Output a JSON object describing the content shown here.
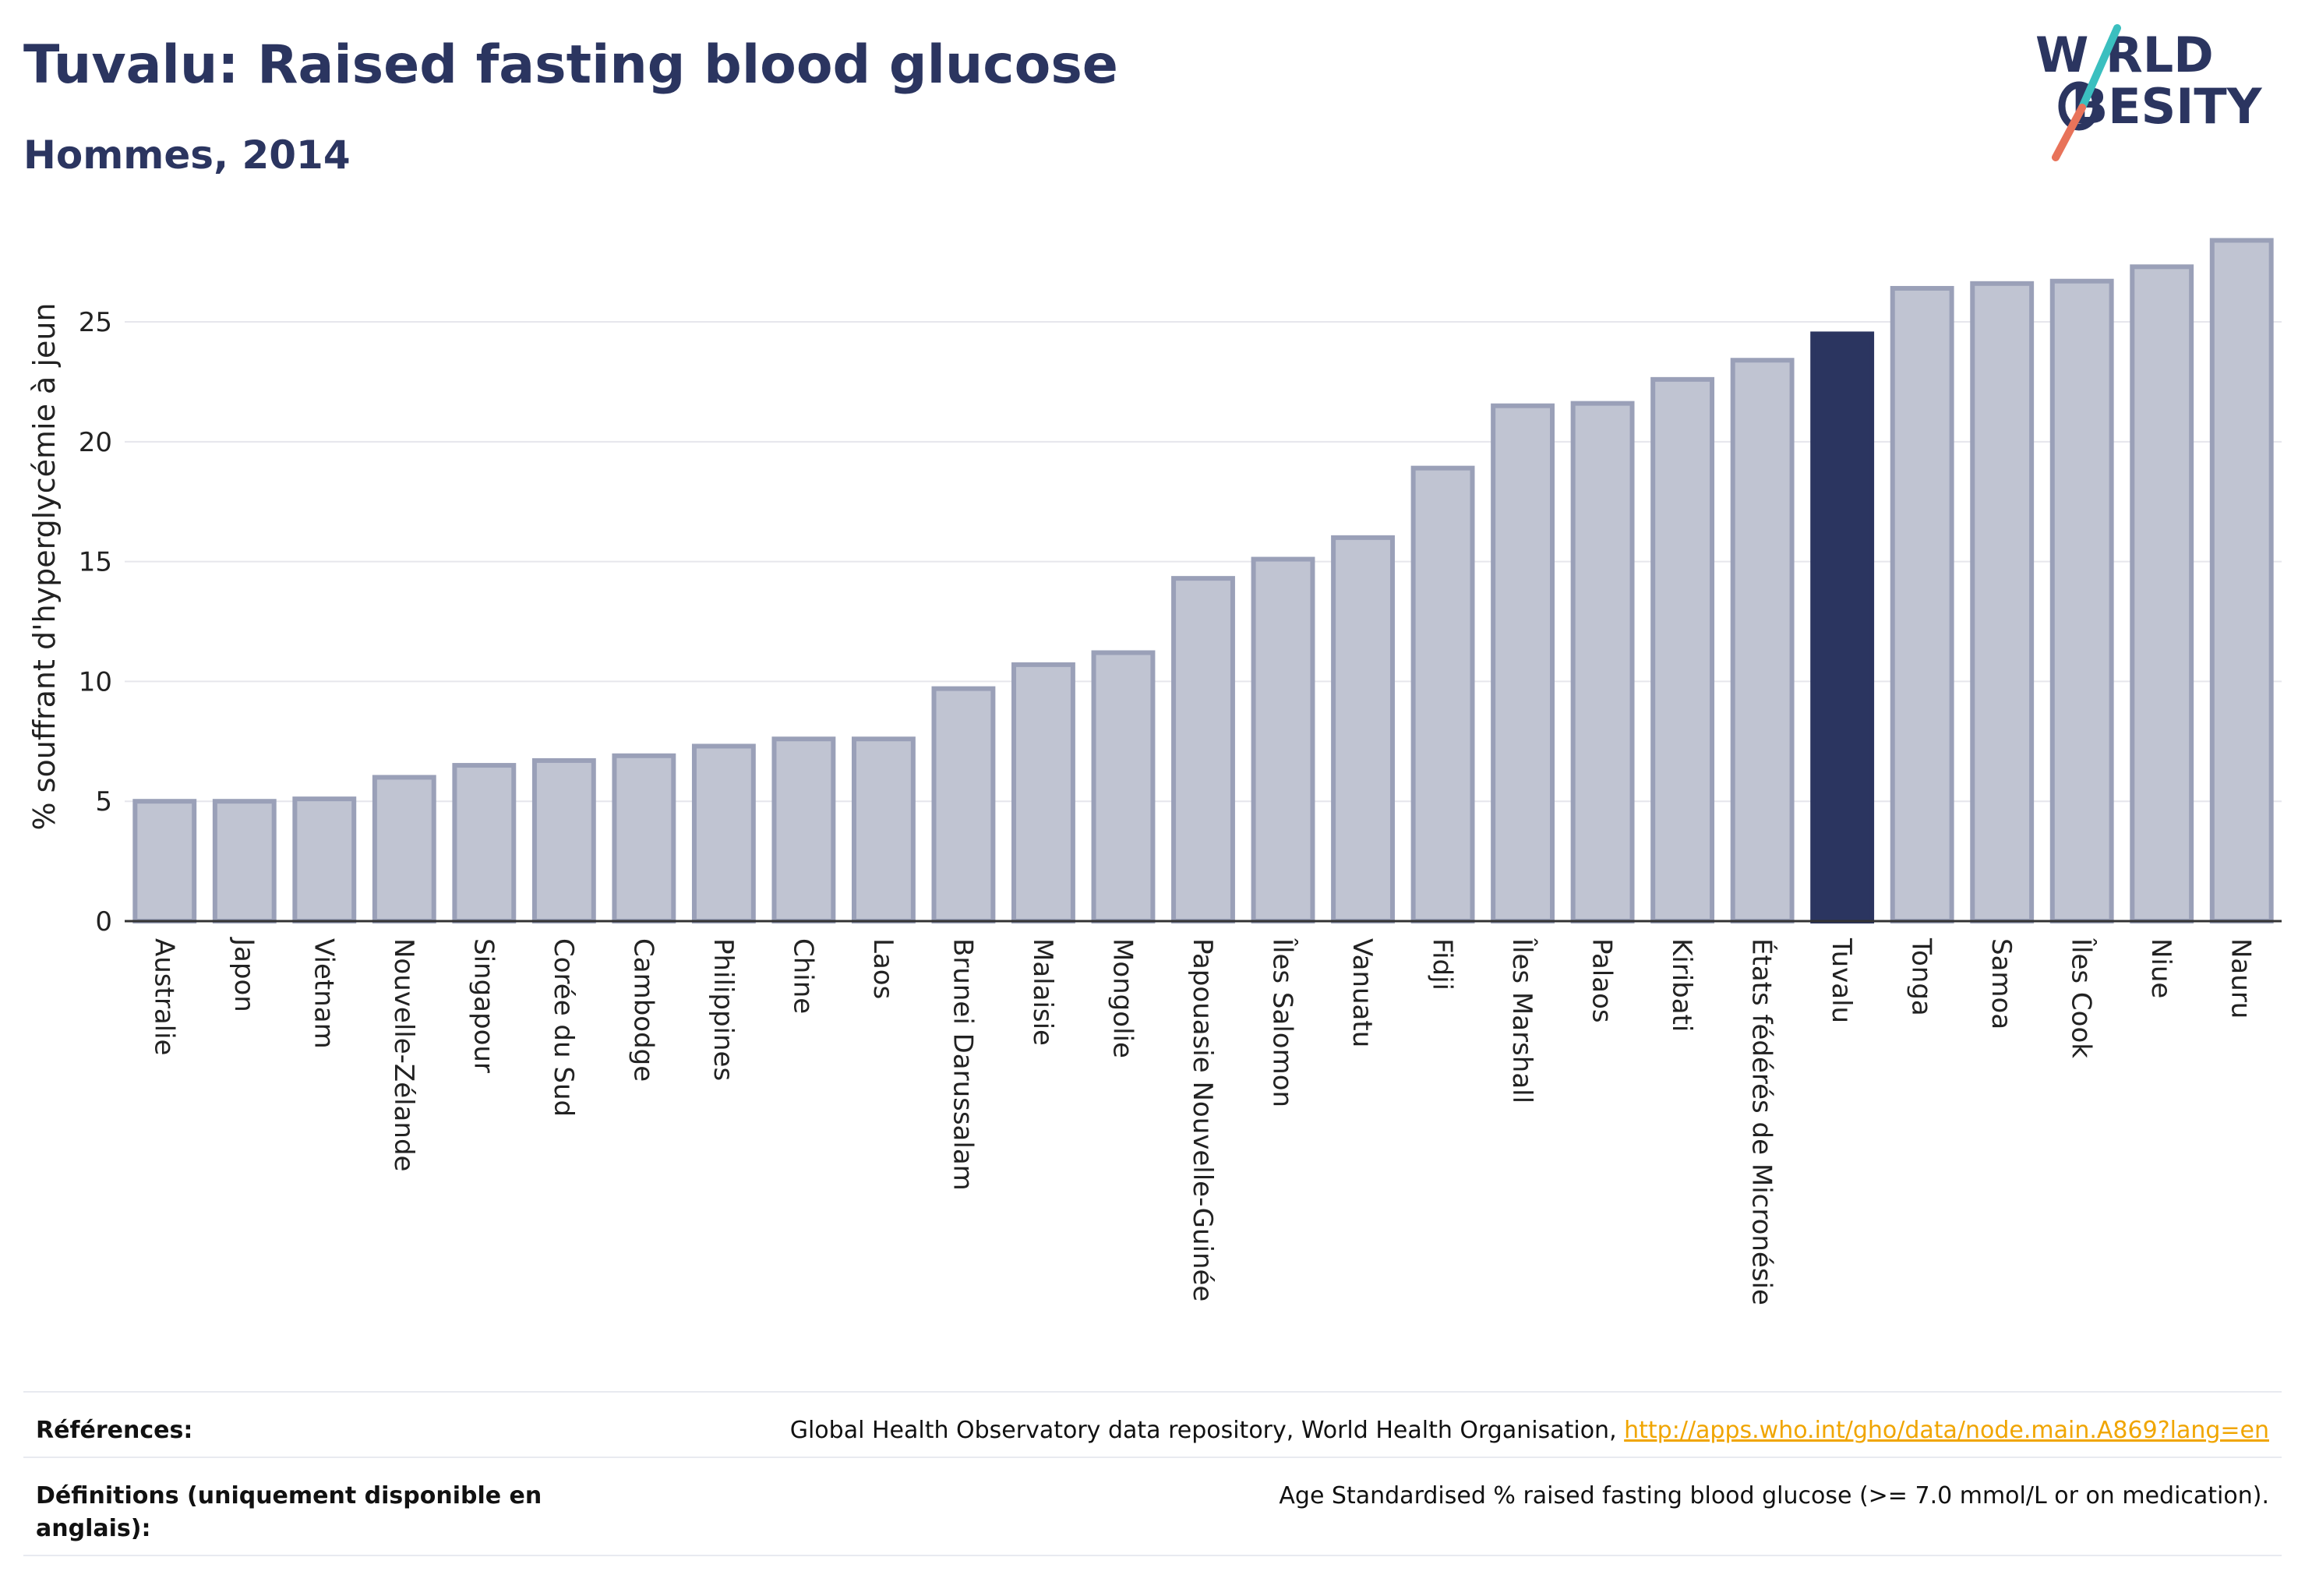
{
  "header": {
    "title": "Tuvalu: Raised fasting blood glucose",
    "subtitle": "Hommes, 2014"
  },
  "logo": {
    "line1": "W RLD",
    "line2": "BESITY",
    "colors": {
      "text": "#2b3560",
      "slash_top": "#3bbfbf",
      "slash_bottom": "#e8735a"
    }
  },
  "chart_data": {
    "type": "bar",
    "title": "",
    "xlabel": "",
    "ylabel": "% souffrant d'hyperglycémie à jeun",
    "ylim": [
      0,
      29
    ],
    "yticks": [
      0,
      5,
      10,
      15,
      20,
      25
    ],
    "grid": true,
    "legend": "none",
    "highlight": "Tuvalu",
    "colors": {
      "bar": "#c0c4d2",
      "bar_border": "#9aa0b8",
      "highlight": "#2b3560"
    },
    "categories": [
      "Australie",
      "Japon",
      "Vietnam",
      "Nouvelle-Zélande",
      "Singapour",
      "Corée du Sud",
      "Cambodge",
      "Philippines",
      "Chine",
      "Laos",
      "Brunei Darussalam",
      "Malaisie",
      "Mongolie",
      "Papouasie Nouvelle-Guinée",
      "Îles Salomon",
      "Vanuatu",
      "Fidji",
      "Îles Marshall",
      "Palaos",
      "Kiribati",
      "États fédérés de Micronésie",
      "Tuvalu",
      "Tonga",
      "Samoa",
      "Îles Cook",
      "Niue",
      "Nauru"
    ],
    "values": [
      5.0,
      5.0,
      5.1,
      6.0,
      6.5,
      6.7,
      6.9,
      7.3,
      7.6,
      7.6,
      9.7,
      10.7,
      11.2,
      14.3,
      15.1,
      16.0,
      18.9,
      21.5,
      21.6,
      22.6,
      23.4,
      24.5,
      26.4,
      26.6,
      26.7,
      27.3,
      28.4
    ]
  },
  "footer": {
    "references_label": "Références:",
    "references_text": "Global Health Observatory data repository, World Health Organisation, ",
    "references_link": "http://apps.who.int/gho/data/node.main.A869?lang=en",
    "definitions_label": "Définitions (uniquement disponible en anglais):",
    "definitions_text": "Age Standardised % raised fasting blood glucose (>= 7.0 mmol/L or on medication)."
  }
}
